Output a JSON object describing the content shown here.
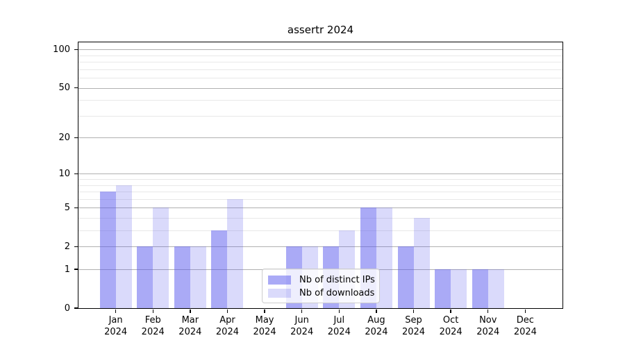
{
  "title": "assertr 2024",
  "chart_data": {
    "type": "bar",
    "title": "assertr 2024",
    "categories": [
      "Jan",
      "Feb",
      "Mar",
      "Apr",
      "May",
      "Jun",
      "Jul",
      "Aug",
      "Sep",
      "Oct",
      "Nov",
      "Dec"
    ],
    "year_label": "2024",
    "series": [
      {
        "name": "Nb of distinct IPs",
        "color": "rgba(85,85,238,0.5)",
        "values": [
          7,
          2,
          2,
          3,
          0,
          2,
          2,
          5,
          2,
          1,
          1,
          0
        ]
      },
      {
        "name": "Nb of downloads",
        "color": "rgba(85,85,238,0.22)",
        "values": [
          8,
          5,
          2,
          6,
          0,
          2,
          3,
          5,
          4,
          1,
          1,
          0
        ]
      }
    ],
    "y_axis": {
      "scale": "log1p",
      "major_ticks": [
        100,
        50,
        20,
        10,
        5,
        2,
        1,
        0
      ],
      "minor_gridlines": [
        3,
        4,
        6,
        7,
        8,
        9,
        30,
        40,
        60,
        70,
        80,
        90
      ],
      "ylim": [
        0,
        114
      ]
    },
    "xlabel": "",
    "ylabel": "",
    "grid": true,
    "legend_position": "lower center"
  },
  "colors": {
    "bar_distinct_ips": "rgba(85,85,238,0.5)",
    "bar_downloads": "rgba(85,85,238,0.22)",
    "grid_major": "#b0b0b0",
    "grid_minor": "#e8e8e8",
    "axis": "#000000",
    "background": "#ffffff"
  }
}
